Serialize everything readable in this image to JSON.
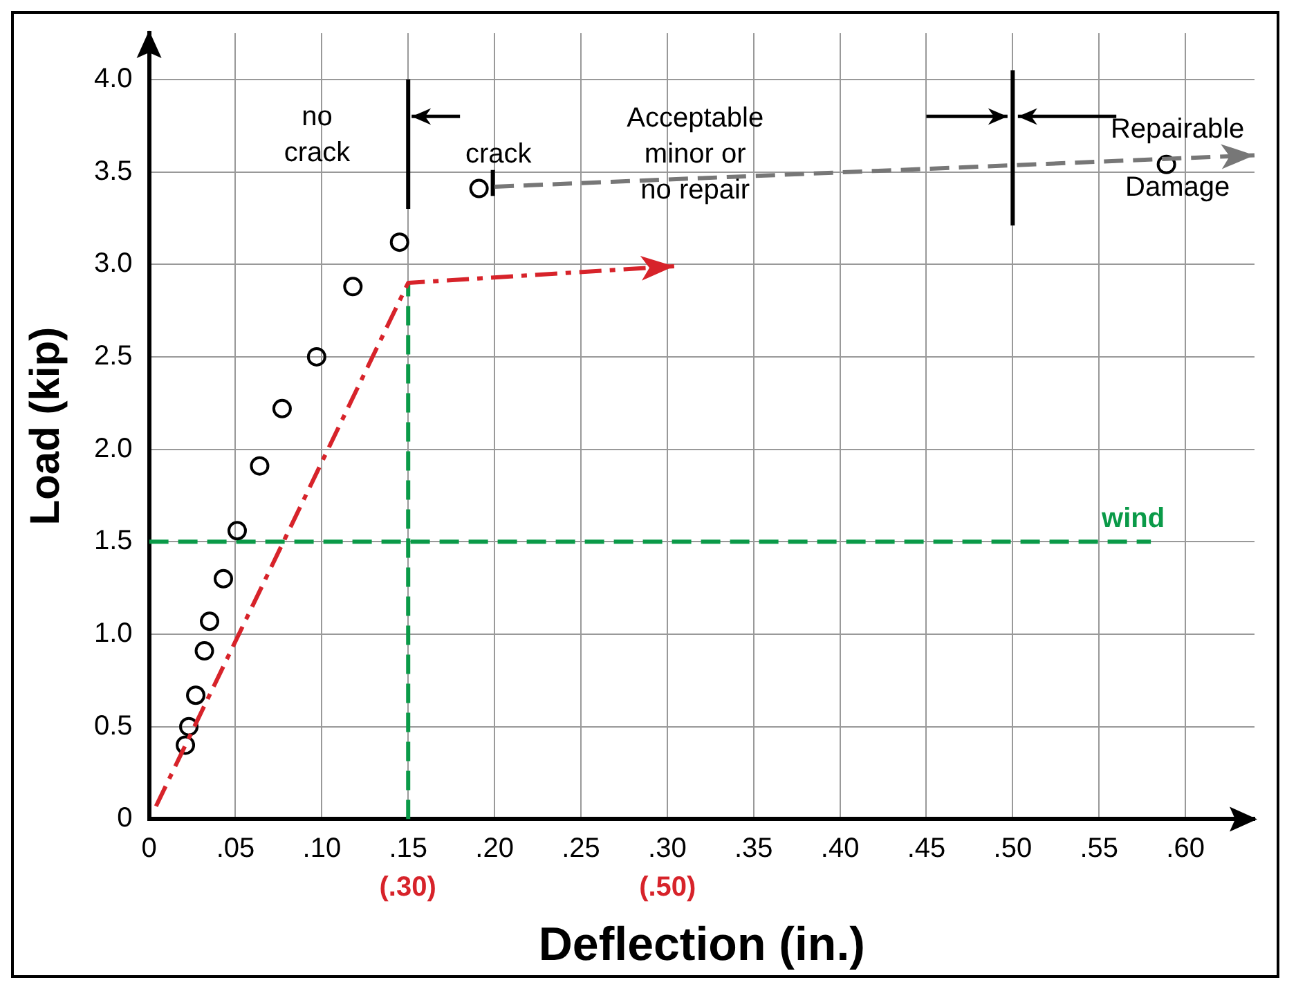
{
  "chart_data": {
    "type": "scatter",
    "xlabel": "Deflection (in.)",
    "ylabel": "Load (kip)",
    "xlim": [
      0,
      0.64
    ],
    "ylim": [
      0,
      4.25
    ],
    "xticks": [
      0,
      {
        "value": 0.05,
        "label": ".05"
      },
      {
        "value": 0.1,
        "label": ".10"
      },
      {
        "value": 0.15,
        "label": ".15"
      },
      {
        "value": 0.2,
        "label": ".20"
      },
      {
        "value": 0.25,
        "label": ".25"
      },
      {
        "value": 0.3,
        "label": ".30"
      },
      {
        "value": 0.35,
        "label": ".35"
      },
      {
        "value": 0.4,
        "label": ".40"
      },
      {
        "value": 0.45,
        "label": ".45"
      },
      {
        "value": 0.5,
        "label": ".50"
      },
      {
        "value": 0.55,
        "label": ".55"
      },
      {
        "value": 0.6,
        "label": ".60"
      }
    ],
    "yticks": [
      0,
      0.5,
      {
        "value": 1,
        "label": "1.0"
      },
      1.5,
      {
        "value": 2,
        "label": "2.0"
      },
      2.5,
      {
        "value": 3,
        "label": "3.0"
      },
      3.5,
      {
        "value": 4,
        "label": "4.0"
      }
    ],
    "grid": true,
    "legend": false,
    "marker": "circle",
    "series": [
      {
        "type": "scatter",
        "color": "#000000",
        "x": [
          0.021,
          0.023,
          0.027,
          0.032,
          0.035,
          0.043,
          0.051,
          0.064,
          0.077,
          0.097,
          0.118,
          0.145,
          0.191,
          0.589
        ],
        "values": [
          0.4,
          0.5,
          0.67,
          0.91,
          1.07,
          1.3,
          1.56,
          1.91,
          2.22,
          2.5,
          2.88,
          3.12,
          3.41,
          3.54
        ]
      },
      {
        "type": "line",
        "name": "wind",
        "color": "#0a9a48",
        "line_style": "dashed",
        "marker": "none",
        "x": [
          0,
          0.58
        ],
        "values": [
          1.5,
          1.5
        ]
      },
      {
        "type": "line",
        "color": "#0a9a48",
        "line_style": "dashed",
        "marker": "none",
        "x": [
          0.15,
          0.15
        ],
        "values": [
          0,
          2.9
        ]
      },
      {
        "type": "line",
        "color": "#000000",
        "line_style": "solid",
        "marker": "none",
        "x": [
          0.15,
          0.15
        ],
        "values": [
          3.3,
          4
        ]
      },
      {
        "type": "line",
        "color": "#000000",
        "line_style": "solid",
        "marker": "none",
        "x": [
          0.199,
          0.199
        ],
        "values": [
          3.37,
          3.51
        ]
      },
      {
        "type": "line",
        "color": "#000000",
        "line_style": "solid",
        "marker": "none",
        "x": [
          0.5,
          0.5
        ],
        "values": [
          3.21,
          4.05
        ]
      }
    ],
    "annotations": [
      "no\ncrack",
      "crack",
      "Acceptable\nminor or\nno repair",
      {
        "text": "Repairable\nDamage",
        "x": 0.589,
        "y": 3.54
      },
      "(.30)",
      "(.50)"
    ]
  }
}
